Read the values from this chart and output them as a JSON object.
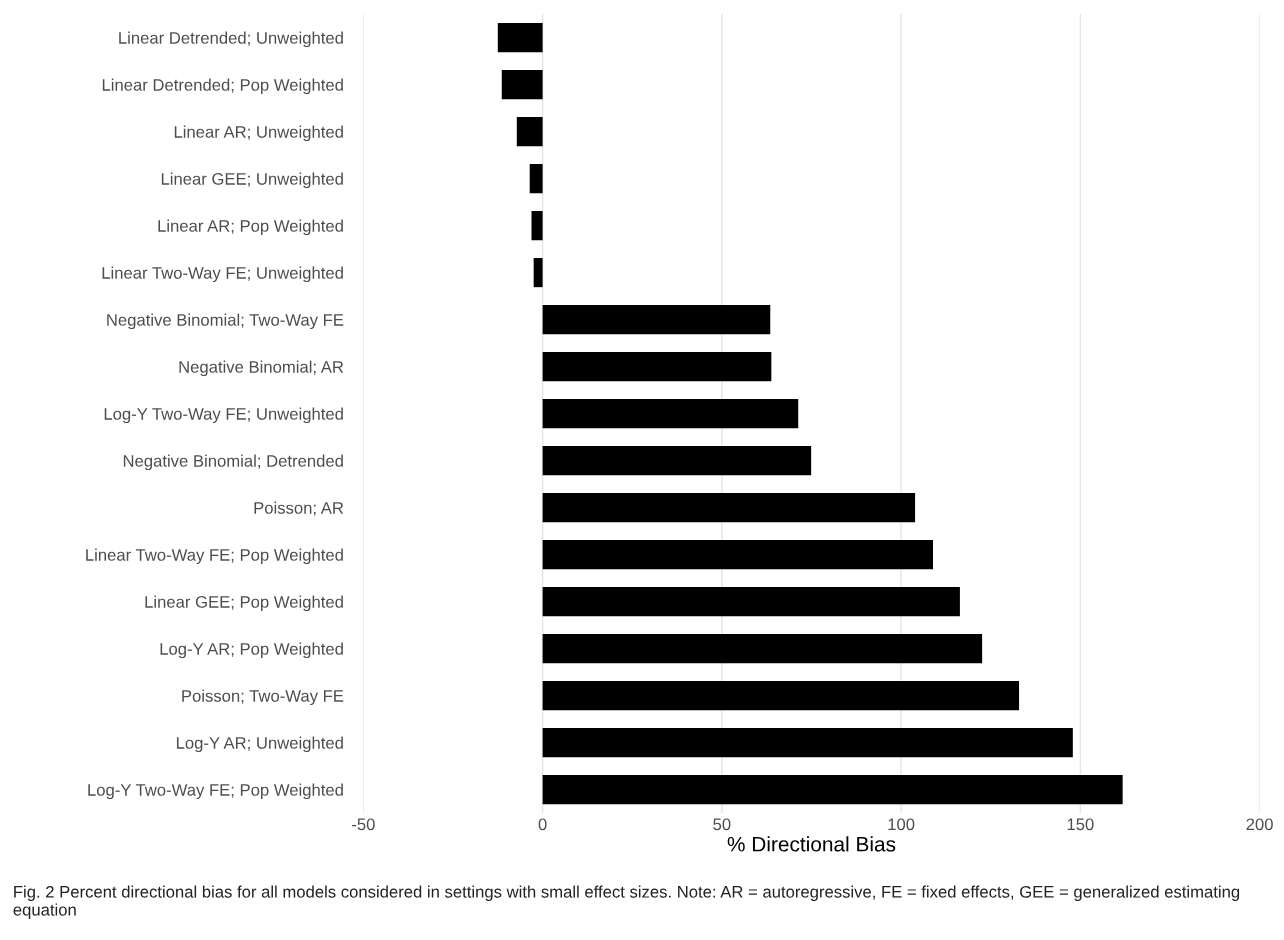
{
  "chart_data": {
    "type": "bar",
    "orientation": "horizontal",
    "categories": [
      "Linear Detrended; Unweighted",
      "Linear Detrended; Pop Weighted",
      "Linear AR; Unweighted",
      "Linear GEE; Unweighted",
      "Linear AR; Pop Weighted",
      "Linear Two-Way FE; Unweighted",
      "Negative Binomial; Two-Way FE",
      "Negative Binomial; AR",
      "Log-Y Two-Way FE; Unweighted",
      "Negative Binomial; Detrended",
      "Poisson; AR",
      "Linear Two-Way FE; Pop Weighted",
      "Linear GEE; Pop Weighted",
      "Log-Y AR; Pop Weighted",
      "Poisson; Two-Way FE",
      "Log-Y AR; Unweighted",
      "Log-Y Two-Way FE; Pop Weighted"
    ],
    "values": [
      -12.5,
      -11.4,
      -7.2,
      -3.6,
      -3.1,
      -2.5,
      63.5,
      63.8,
      71.3,
      74.9,
      103.9,
      108.9,
      116.4,
      122.6,
      132.9,
      147.9,
      161.8
    ],
    "color": "#000000",
    "xlabel": "% Directional Bias",
    "xlim": [
      -50,
      200
    ],
    "xticks": [
      -50,
      0,
      50,
      100,
      150,
      200
    ],
    "grid": "x",
    "annotations": [
      "Fig. 2 Percent directional bias for all models considered in settings with small effect sizes. Note: AR = autoregressive, FE = fixed effects, GEE = generalized estimating equation"
    ]
  }
}
